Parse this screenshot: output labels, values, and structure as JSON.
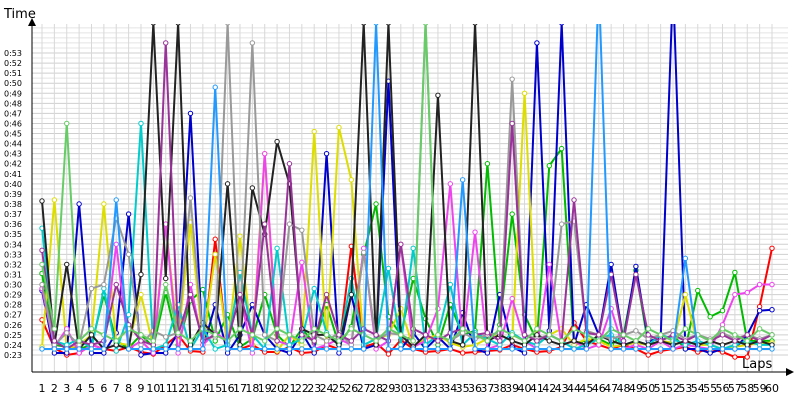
{
  "chart_data": {
    "type": "line",
    "title": "",
    "xlabel": "Laps",
    "ylabel": "Time",
    "grid": true,
    "legend": "none",
    "xlim": [
      1,
      60
    ],
    "ylim": [
      0.225,
      0.54
    ],
    "x": [
      1,
      2,
      3,
      4,
      5,
      6,
      7,
      8,
      9,
      10,
      11,
      12,
      13,
      14,
      15,
      16,
      17,
      18,
      19,
      20,
      21,
      22,
      23,
      24,
      25,
      26,
      27,
      28,
      29,
      30,
      31,
      32,
      33,
      34,
      35,
      36,
      37,
      38,
      39,
      40,
      41,
      42,
      43,
      44,
      45,
      46,
      47,
      48,
      49,
      50,
      51,
      52,
      53,
      54,
      55,
      56,
      57,
      58,
      59,
      60
    ],
    "x_tick_labels": [
      "1",
      "2",
      "3",
      "4",
      "5",
      "6",
      "7",
      "8",
      "9",
      "10",
      "11",
      "12",
      "13",
      "14",
      "15",
      "16",
      "17",
      "18",
      "19",
      "20",
      "21",
      "22",
      "23",
      "24",
      "25",
      "26",
      "27",
      "28",
      "29",
      "30",
      "31",
      "32",
      "33",
      "34",
      "35",
      "36",
      "37",
      "38",
      "39",
      "40",
      "41",
      "42",
      "43",
      "44",
      "45",
      "46",
      "47",
      "48",
      "49",
      "50",
      "51",
      "52",
      "53",
      "54",
      "55",
      "56",
      "57",
      "58",
      "59",
      "60"
    ],
    "y_tick_labels": [
      "0:23",
      "0:24",
      "0:25",
      "0:26",
      "0:27",
      "0:28",
      "0:29",
      "0:30",
      "0:31",
      "0:32",
      "0:33",
      "0:34",
      "0:35",
      "0:36",
      "0:37",
      "0:38",
      "0:39",
      "0:40",
      "0:41",
      "0:42",
      "0:43",
      "0:44",
      "0:45",
      "0:46",
      "0:47",
      "0:48",
      "0:49",
      "0:50",
      "0:51",
      "0:52",
      "0:53"
    ],
    "series": [
      {
        "color": "#ff0000",
        "values": [
          0.265,
          0.237,
          0.23,
          0.232,
          0.24,
          0.236,
          0.234,
          0.238,
          0.233,
          0.231,
          0.24,
          0.25,
          0.234,
          0.233,
          0.345,
          0.236,
          0.236,
          0.24,
          0.233,
          0.233,
          0.238,
          0.232,
          0.233,
          0.24,
          0.236,
          0.338,
          0.238,
          0.242,
          0.231,
          0.245,
          0.236,
          0.233,
          0.234,
          0.236,
          0.232,
          0.233,
          0.234,
          0.235,
          0.24,
          0.236,
          0.233,
          0.234,
          0.238,
          0.262,
          0.244,
          0.24,
          0.236,
          0.24,
          0.236,
          0.23,
          0.234,
          0.236,
          0.238,
          0.233,
          0.236,
          0.233,
          0.228,
          0.228,
          0.278,
          0.336
        ]
      },
      {
        "color": "#00bb00",
        "values": [
          0.311,
          0.24,
          0.238,
          0.236,
          0.24,
          0.29,
          0.244,
          0.237,
          0.25,
          0.238,
          0.292,
          0.24,
          0.284,
          0.295,
          0.244,
          0.27,
          0.238,
          0.246,
          0.29,
          0.25,
          0.238,
          0.256,
          0.242,
          0.28,
          0.24,
          0.258,
          0.33,
          0.38,
          0.268,
          0.25,
          0.306,
          0.266,
          0.24,
          0.28,
          0.25,
          0.254,
          0.42,
          0.26,
          0.37,
          0.27,
          0.244,
          0.418,
          0.435,
          0.24,
          0.245,
          0.246,
          0.24,
          0.25,
          0.314,
          0.24,
          0.244,
          0.25,
          0.236,
          0.294,
          0.268,
          0.274,
          0.312,
          0.244,
          0.244,
          0.244
        ]
      },
      {
        "color": "#0000cc",
        "values": [
          0.294,
          0.232,
          0.232,
          0.38,
          0.232,
          0.232,
          0.252,
          0.37,
          0.23,
          0.232,
          0.232,
          0.252,
          0.47,
          0.236,
          0.28,
          0.232,
          0.25,
          0.28,
          0.25,
          0.236,
          0.232,
          0.252,
          0.232,
          0.43,
          0.232,
          0.29,
          0.236,
          0.24,
          0.502,
          0.236,
          0.252,
          0.236,
          0.248,
          0.236,
          0.272,
          0.236,
          0.232,
          0.29,
          0.238,
          0.232,
          0.54,
          0.254,
          0.56,
          0.24,
          0.28,
          0.25,
          0.32,
          0.244,
          0.318,
          0.244,
          0.246,
          0.6,
          0.236,
          0.236,
          0.232,
          0.236,
          0.236,
          0.25,
          0.274,
          0.275
        ]
      },
      {
        "color": "#dddd00",
        "values": [
          0.238,
          0.384,
          0.236,
          0.24,
          0.25,
          0.38,
          0.242,
          0.24,
          0.29,
          0.238,
          0.36,
          0.244,
          0.362,
          0.24,
          0.33,
          0.24,
          0.348,
          0.24,
          0.43,
          0.234,
          0.25,
          0.24,
          0.452,
          0.242,
          0.456,
          0.404,
          0.24,
          0.246,
          0.25,
          0.276,
          0.238,
          0.246,
          0.25,
          0.242,
          0.238,
          0.24,
          0.246,
          0.25,
          0.244,
          0.49,
          0.24,
          0.25,
          0.256,
          0.24,
          0.246,
          0.244,
          0.238,
          0.24,
          0.242,
          0.24,
          0.244,
          0.242,
          0.29,
          0.24,
          0.24,
          0.236,
          0.238,
          0.24,
          0.242,
          0.242
        ]
      },
      {
        "color": "#ee44ee",
        "values": [
          0.296,
          0.238,
          0.256,
          0.232,
          0.24,
          0.236,
          0.34,
          0.236,
          0.244,
          0.232,
          0.36,
          0.232,
          0.3,
          0.24,
          0.252,
          0.244,
          0.29,
          0.232,
          0.43,
          0.244,
          0.24,
          0.322,
          0.236,
          0.24,
          0.246,
          0.24,
          0.336,
          0.236,
          0.244,
          0.34,
          0.238,
          0.244,
          0.276,
          0.4,
          0.24,
          0.352,
          0.236,
          0.24,
          0.286,
          0.244,
          0.236,
          0.32,
          0.24,
          0.244,
          0.236,
          0.24,
          0.276,
          0.236,
          0.24,
          0.236,
          0.244,
          0.236,
          0.24,
          0.238,
          0.236,
          0.26,
          0.29,
          0.292,
          0.3,
          0.3
        ]
      },
      {
        "color": "#00cccc",
        "values": [
          0.356,
          0.244,
          0.24,
          0.246,
          0.236,
          0.296,
          0.234,
          0.27,
          0.46,
          0.236,
          0.24,
          0.28,
          0.236,
          0.256,
          0.236,
          0.24,
          0.312,
          0.25,
          0.236,
          0.336,
          0.24,
          0.246,
          0.296,
          0.252,
          0.24,
          0.306,
          0.24,
          0.246,
          0.316,
          0.24,
          0.336,
          0.24,
          0.25,
          0.3,
          0.24,
          0.252,
          0.246,
          0.24,
          0.252,
          0.244,
          0.24,
          0.25,
          0.244,
          0.236,
          0.24,
          0.246,
          0.25,
          0.24,
          0.244,
          0.24,
          0.25,
          0.246,
          0.24,
          0.244,
          0.24,
          0.236,
          0.24,
          0.244,
          0.24,
          0.24
        ]
      },
      {
        "color": "#222222",
        "values": [
          0.383,
          0.24,
          0.32,
          0.236,
          0.25,
          0.236,
          0.24,
          0.236,
          0.31,
          0.56,
          0.306,
          0.56,
          0.24,
          0.262,
          0.25,
          0.4,
          0.24,
          0.396,
          0.35,
          0.442,
          0.4,
          0.256,
          0.25,
          0.25,
          0.24,
          0.29,
          0.56,
          0.24,
          0.56,
          0.25,
          0.238,
          0.25,
          0.488,
          0.244,
          0.24,
          0.56,
          0.244,
          0.25,
          0.244,
          0.24,
          0.25,
          0.244,
          0.24,
          0.244,
          0.24,
          0.25,
          0.244,
          0.24,
          0.244,
          0.24,
          0.244,
          0.24,
          0.244,
          0.24,
          0.244,
          0.24,
          0.244,
          0.24,
          0.244,
          0.24
        ]
      },
      {
        "color": "#999999",
        "values": [
          0.3,
          0.24,
          0.252,
          0.24,
          0.296,
          0.3,
          0.366,
          0.33,
          0.24,
          0.254,
          0.248,
          0.252,
          0.386,
          0.246,
          0.248,
          0.56,
          0.256,
          0.54,
          0.25,
          0.244,
          0.36,
          0.354,
          0.25,
          0.244,
          0.252,
          0.24,
          0.332,
          0.244,
          0.252,
          0.25,
          0.244,
          0.56,
          0.25,
          0.244,
          0.252,
          0.246,
          0.25,
          0.252,
          0.504,
          0.25,
          0.246,
          0.25,
          0.36,
          0.363,
          0.254,
          0.25,
          0.246,
          0.25,
          0.254,
          0.246,
          0.25,
          0.254,
          0.246,
          0.25,
          0.246,
          0.252,
          0.246,
          0.25,
          0.246,
          0.25
        ]
      },
      {
        "color": "#993399",
        "values": [
          0.334,
          0.244,
          0.236,
          0.244,
          0.24,
          0.244,
          0.3,
          0.26,
          0.244,
          0.24,
          0.54,
          0.25,
          0.29,
          0.244,
          0.25,
          0.244,
          0.29,
          0.25,
          0.36,
          0.244,
          0.42,
          0.25,
          0.244,
          0.29,
          0.25,
          0.244,
          0.256,
          0.25,
          0.244,
          0.34,
          0.256,
          0.25,
          0.244,
          0.252,
          0.256,
          0.25,
          0.252,
          0.244,
          0.46,
          0.25,
          0.244,
          0.25,
          0.244,
          0.384,
          0.252,
          0.25,
          0.31,
          0.244,
          0.31,
          0.25,
          0.244,
          0.25,
          0.244,
          0.25,
          0.244,
          0.25,
          0.244,
          0.25,
          0.244,
          0.25
        ]
      },
      {
        "color": "#66cc66",
        "values": [
          0.32,
          0.256,
          0.46,
          0.244,
          0.256,
          0.25,
          0.244,
          0.256,
          0.25,
          0.244,
          0.3,
          0.252,
          0.244,
          0.256,
          0.25,
          0.244,
          0.256,
          0.25,
          0.244,
          0.256,
          0.25,
          0.244,
          0.256,
          0.25,
          0.244,
          0.256,
          0.25,
          0.244,
          0.256,
          0.25,
          0.244,
          0.56,
          0.25,
          0.244,
          0.256,
          0.25,
          0.244,
          0.256,
          0.25,
          0.244,
          0.256,
          0.25,
          0.244,
          0.256,
          0.25,
          0.244,
          0.256,
          0.25,
          0.244,
          0.256,
          0.25,
          0.244,
          0.256,
          0.25,
          0.244,
          0.256,
          0.25,
          0.244,
          0.256,
          0.25
        ]
      },
      {
        "color": "#2299ff",
        "values": [
          0.236,
          0.236,
          0.236,
          0.236,
          0.236,
          0.236,
          0.384,
          0.236,
          0.236,
          0.236,
          0.236,
          0.236,
          0.236,
          0.236,
          0.496,
          0.236,
          0.236,
          0.236,
          0.236,
          0.236,
          0.236,
          0.236,
          0.236,
          0.236,
          0.236,
          0.236,
          0.236,
          0.56,
          0.236,
          0.236,
          0.236,
          0.236,
          0.236,
          0.236,
          0.404,
          0.236,
          0.236,
          0.236,
          0.236,
          0.236,
          0.236,
          0.236,
          0.236,
          0.236,
          0.236,
          0.6,
          0.236,
          0.236,
          0.236,
          0.236,
          0.236,
          0.236,
          0.326,
          0.236,
          0.236,
          0.236,
          0.236,
          0.236,
          0.236,
          0.236
        ]
      }
    ]
  }
}
